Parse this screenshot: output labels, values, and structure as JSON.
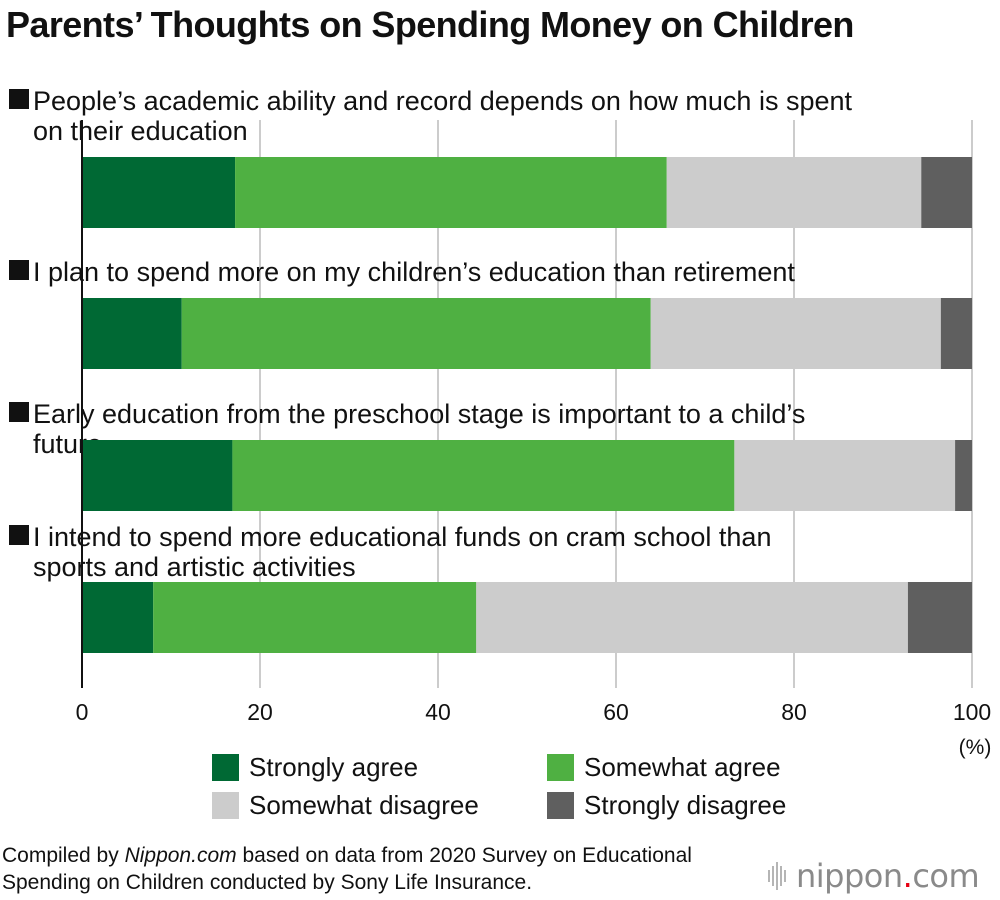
{
  "title": "Parents’ Thoughts on Spending Money on Children",
  "colors": {
    "strongly_agree": "#006934",
    "somewhat_agree": "#4fb042",
    "somewhat_disagree": "#cccccc",
    "strongly_disagree": "#5f5f5f",
    "grid": "#cccccc"
  },
  "chart_data": {
    "type": "bar",
    "orientation": "horizontal",
    "stacked": true,
    "title": "Parents’ Thoughts on Spending Money on Children",
    "categories": [
      "People’s academic ability and record depends on how much is spent on their education",
      "I plan to spend more on my children’s education than retirement",
      "Early education from the preschool stage is important to a child’s future",
      "I intend to spend more educational funds on cram school than sports and artistic activities"
    ],
    "series": [
      {
        "name": "Strongly agree",
        "color": "#006934",
        "values": [
          17.2,
          11.2,
          16.9,
          8.0
        ]
      },
      {
        "name": "Somewhat agree",
        "color": "#4fb042",
        "values": [
          48.5,
          52.7,
          56.4,
          36.3
        ]
      },
      {
        "name": "Somewhat disagree",
        "color": "#cccccc",
        "values": [
          28.6,
          32.6,
          24.8,
          48.5
        ]
      },
      {
        "name": "Strongly disagree",
        "color": "#5f5f5f",
        "values": [
          5.7,
          3.5,
          1.9,
          7.2
        ]
      }
    ],
    "xlim": [
      0,
      100
    ],
    "xticks": [
      "0",
      "20",
      "40",
      "60",
      "80",
      "100"
    ],
    "xunit": "(%)",
    "grid": true,
    "legend": "bottom"
  },
  "legend": [
    {
      "label": "Strongly agree",
      "color": "#006934"
    },
    {
      "label": "Somewhat agree",
      "color": "#4fb042"
    },
    {
      "label": "Somewhat disagree",
      "color": "#cccccc"
    },
    {
      "label": "Strongly disagree",
      "color": "#5f5f5f"
    }
  ],
  "source": {
    "prefix": "Compiled by ",
    "site": "Nippon.com",
    "suffix": " based on data from 2020 Survey on Educational Spending on Children conducted by Sony Life Insurance."
  },
  "logo": {
    "text_main": "nippon",
    "text_dot": ".",
    "text_end": "com"
  }
}
